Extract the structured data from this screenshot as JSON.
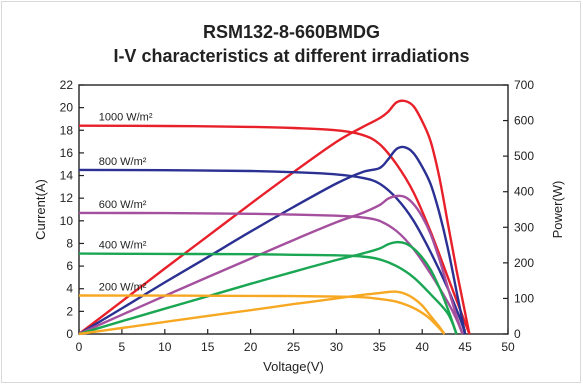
{
  "chart_data": {
    "type": "line",
    "title": "RSM132-8-660BMDG",
    "subtitle": "I-V characteristics at different irradiations",
    "xlabel": "Voltage(V)",
    "ylabel_left": "Current(A)",
    "ylabel_right": "Power(W)",
    "xlim": [
      0,
      50
    ],
    "ylim_left": [
      0,
      22
    ],
    "ylim_right": [
      0,
      700
    ],
    "x_ticks": [
      0,
      5,
      10,
      15,
      20,
      25,
      30,
      35,
      40,
      45,
      50
    ],
    "y_left_ticks": [
      0,
      2,
      4,
      6,
      8,
      10,
      12,
      14,
      16,
      18,
      20,
      22
    ],
    "y_right_ticks": [
      0,
      100,
      200,
      300,
      400,
      500,
      600,
      700
    ],
    "grid": false,
    "series": [
      {
        "name": "1000 W/m²",
        "color": "#e8202a",
        "iv": [
          [
            0,
            18.4
          ],
          [
            10,
            18.38
          ],
          [
            20,
            18.3
          ],
          [
            25,
            18.2
          ],
          [
            30,
            18.0
          ],
          [
            33,
            17.6
          ],
          [
            35,
            16.8
          ],
          [
            37,
            15.0
          ],
          [
            39,
            12.5
          ],
          [
            41,
            9.0
          ],
          [
            43,
            5.0
          ],
          [
            44.5,
            2.0
          ],
          [
            45.5,
            0
          ]
        ],
        "pv": [
          [
            0,
            0
          ],
          [
            5,
            92
          ],
          [
            10,
            184
          ],
          [
            15,
            275
          ],
          [
            20,
            366
          ],
          [
            25,
            455
          ],
          [
            30,
            540
          ],
          [
            33,
            581
          ],
          [
            35,
            606
          ],
          [
            36,
            624
          ],
          [
            37,
            651
          ],
          [
            38,
            655
          ],
          [
            39,
            640
          ],
          [
            40,
            598
          ],
          [
            41,
            540
          ],
          [
            42,
            440
          ],
          [
            43,
            310
          ],
          [
            44,
            180
          ],
          [
            45,
            60
          ],
          [
            45.5,
            0
          ]
        ]
      },
      {
        "name": "800 W/m²",
        "color": "#2b3192",
        "iv": [
          [
            0,
            14.5
          ],
          [
            10,
            14.47
          ],
          [
            20,
            14.4
          ],
          [
            25,
            14.3
          ],
          [
            30,
            14.1
          ],
          [
            33,
            13.8
          ],
          [
            35,
            13.3
          ],
          [
            37,
            12.0
          ],
          [
            39,
            10.0
          ],
          [
            41,
            7.2
          ],
          [
            43,
            4.0
          ],
          [
            44.5,
            1.2
          ],
          [
            45,
            0
          ]
        ],
        "pv": [
          [
            0,
            0
          ],
          [
            5,
            72
          ],
          [
            10,
            145
          ],
          [
            15,
            216
          ],
          [
            20,
            288
          ],
          [
            25,
            357
          ],
          [
            30,
            423
          ],
          [
            33,
            455
          ],
          [
            35,
            466
          ],
          [
            36,
            490
          ],
          [
            37,
            520
          ],
          [
            38,
            525
          ],
          [
            39,
            508
          ],
          [
            40,
            470
          ],
          [
            41,
            420
          ],
          [
            42,
            340
          ],
          [
            43,
            240
          ],
          [
            44,
            120
          ],
          [
            45,
            0
          ]
        ]
      },
      {
        "name": "600 W/m²",
        "color": "#a4509e",
        "iv": [
          [
            0,
            10.7
          ],
          [
            10,
            10.68
          ],
          [
            20,
            10.62
          ],
          [
            25,
            10.55
          ],
          [
            30,
            10.45
          ],
          [
            33,
            10.3
          ],
          [
            35,
            10.0
          ],
          [
            37,
            9.1
          ],
          [
            39,
            7.5
          ],
          [
            41,
            5.3
          ],
          [
            43,
            2.8
          ],
          [
            44,
            1.3
          ],
          [
            44.7,
            0
          ]
        ],
        "pv": [
          [
            0,
            0
          ],
          [
            5,
            54
          ],
          [
            10,
            107
          ],
          [
            15,
            160
          ],
          [
            20,
            212
          ],
          [
            25,
            264
          ],
          [
            30,
            314
          ],
          [
            33,
            340
          ],
          [
            35,
            362
          ],
          [
            36,
            380
          ],
          [
            37,
            388
          ],
          [
            38,
            385
          ],
          [
            39,
            365
          ],
          [
            40,
            330
          ],
          [
            41,
            280
          ],
          [
            42,
            210
          ],
          [
            43,
            130
          ],
          [
            44,
            50
          ],
          [
            44.7,
            0
          ]
        ]
      },
      {
        "name": "400 W/m²",
        "color": "#1aa652",
        "iv": [
          [
            0,
            7.1
          ],
          [
            10,
            7.08
          ],
          [
            20,
            7.05
          ],
          [
            25,
            7.0
          ],
          [
            30,
            6.95
          ],
          [
            33,
            6.85
          ],
          [
            35,
            6.6
          ],
          [
            37,
            6.0
          ],
          [
            39,
            5.0
          ],
          [
            41,
            3.5
          ],
          [
            43,
            1.8
          ],
          [
            44,
            0
          ]
        ],
        "pv": [
          [
            0,
            0
          ],
          [
            5,
            36
          ],
          [
            10,
            71
          ],
          [
            15,
            106
          ],
          [
            20,
            141
          ],
          [
            25,
            175
          ],
          [
            30,
            208
          ],
          [
            33,
            226
          ],
          [
            35,
            240
          ],
          [
            36,
            252
          ],
          [
            37,
            258
          ],
          [
            38,
            255
          ],
          [
            39,
            240
          ],
          [
            40,
            215
          ],
          [
            41,
            180
          ],
          [
            42,
            130
          ],
          [
            43,
            70
          ],
          [
            44,
            0
          ]
        ]
      },
      {
        "name": "200 W/m²",
        "color": "#f7a823",
        "iv": [
          [
            0,
            3.4
          ],
          [
            10,
            3.39
          ],
          [
            20,
            3.37
          ],
          [
            25,
            3.35
          ],
          [
            30,
            3.3
          ],
          [
            33,
            3.25
          ],
          [
            35,
            3.1
          ],
          [
            37,
            2.85
          ],
          [
            39,
            2.3
          ],
          [
            40.5,
            1.6
          ],
          [
            41.5,
            0.9
          ],
          [
            42.6,
            0
          ]
        ],
        "pv": [
          [
            0,
            0
          ],
          [
            5,
            17
          ],
          [
            10,
            34
          ],
          [
            15,
            51
          ],
          [
            20,
            67
          ],
          [
            25,
            84
          ],
          [
            30,
            100
          ],
          [
            33,
            110
          ],
          [
            35,
            115
          ],
          [
            36,
            118
          ],
          [
            37,
            119
          ],
          [
            38,
            113
          ],
          [
            39,
            100
          ],
          [
            40,
            80
          ],
          [
            41,
            50
          ],
          [
            42,
            20
          ],
          [
            42.6,
            0
          ]
        ]
      }
    ],
    "legend_placement": "inline labels above each I-V curve near the left axis"
  }
}
